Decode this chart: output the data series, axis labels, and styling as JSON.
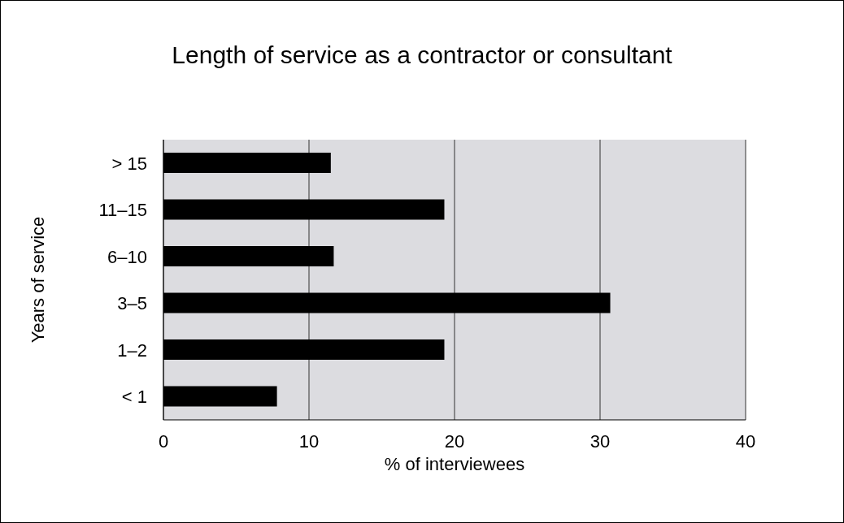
{
  "chart_data": {
    "type": "bar",
    "orientation": "horizontal",
    "title": "Length of service as a contractor or consultant",
    "xlabel": "% of interviewees",
    "ylabel": "Years of service",
    "categories": [
      "> 15",
      "11–15",
      "6–10",
      "3–5",
      "1–2",
      "< 1"
    ],
    "values": [
      11.5,
      19.3,
      11.7,
      30.7,
      19.3,
      7.8
    ],
    "color": "#000000",
    "xlim": [
      0,
      40
    ],
    "xticks": [
      0,
      10,
      20,
      30,
      40
    ],
    "grid": "x",
    "legend": false
  }
}
